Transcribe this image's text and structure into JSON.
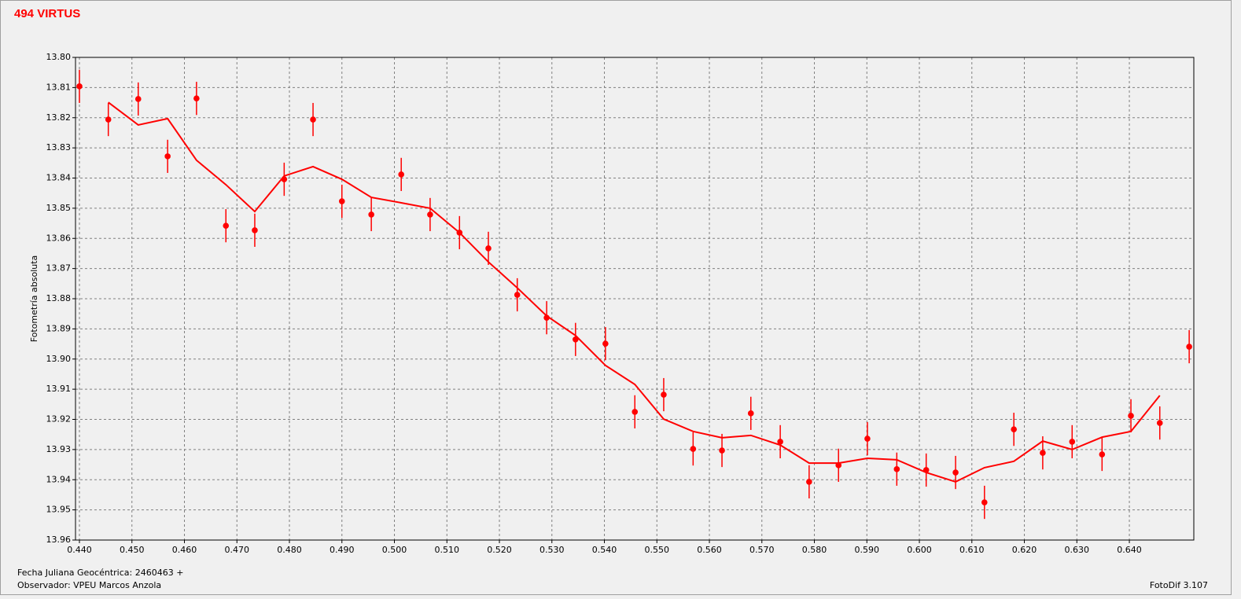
{
  "chart_data": {
    "type": "scatter",
    "title": "494 VIRTUS",
    "ylabel": "Fotometría absoluta",
    "xlabel": "Fecha Juliana Geocéntrica: 2460463 +",
    "observer": "Observador: VPEU Marcos Anzola",
    "software": "FotoDif 3.107",
    "xlim": [
      0.43925,
      0.65228
    ],
    "ylim": [
      13.8,
      13.96
    ],
    "y_inverted": true,
    "grid": true,
    "xticks": [
      {
        "value": 0.44,
        "label": "0.440"
      },
      {
        "value": 0.45,
        "label": "0.450"
      },
      {
        "value": 0.46,
        "label": "0.460"
      },
      {
        "value": 0.47,
        "label": "0.470"
      },
      {
        "value": 0.48,
        "label": "0.480"
      },
      {
        "value": 0.49,
        "label": "0.490"
      },
      {
        "value": 0.5,
        "label": "0.500"
      },
      {
        "value": 0.51,
        "label": "0.510"
      },
      {
        "value": 0.52,
        "label": "0.520"
      },
      {
        "value": 0.53,
        "label": "0.530"
      },
      {
        "value": 0.54,
        "label": "0.540"
      },
      {
        "value": 0.55,
        "label": "0.550"
      },
      {
        "value": 0.56,
        "label": "0.560"
      },
      {
        "value": 0.57,
        "label": "0.570"
      },
      {
        "value": 0.58,
        "label": "0.580"
      },
      {
        "value": 0.59,
        "label": "0.590"
      },
      {
        "value": 0.6,
        "label": "0.600"
      },
      {
        "value": 0.61,
        "label": "0.610"
      },
      {
        "value": 0.62,
        "label": "0.620"
      },
      {
        "value": 0.63,
        "label": "0.630"
      },
      {
        "value": 0.64,
        "label": "0.640"
      }
    ],
    "yticks": [
      {
        "value": 13.8,
        "label": "13.80"
      },
      13.81,
      13.82,
      13.83,
      13.84,
      13.85,
      13.86,
      13.87,
      13.88,
      13.89,
      {
        "value": 13.9,
        "label": "13.90"
      },
      13.91,
      13.92,
      13.93,
      13.94,
      13.95,
      13.96
    ],
    "series": [
      {
        "kind": "points",
        "color": "#ff0000",
        "x": [
          0.44,
          0.4455,
          0.4512,
          0.4568,
          0.4623,
          0.4679,
          0.4734,
          0.479,
          0.4845,
          0.49,
          0.4956,
          0.5013,
          0.5068,
          0.5124,
          0.5179,
          0.5234,
          0.529,
          0.5345,
          0.5402,
          0.5458,
          0.5513,
          0.5569,
          0.5624,
          0.5679,
          0.5735,
          0.579,
          0.5846,
          0.5901,
          0.5957,
          0.6013,
          0.6069,
          0.6124,
          0.618,
          0.6235,
          0.6291,
          0.6348,
          0.6403,
          0.6458,
          0.6514
        ],
        "values": [
          13.8096,
          13.8206,
          13.8138,
          13.8328,
          13.8136,
          13.8558,
          13.8573,
          13.8404,
          13.8206,
          13.8477,
          13.8521,
          13.8388,
          13.8521,
          13.8581,
          13.8633,
          13.8787,
          13.8863,
          13.8935,
          13.8949,
          13.9175,
          13.9118,
          13.9298,
          13.9303,
          13.918,
          13.9274,
          13.9407,
          13.9352,
          13.9264,
          13.9365,
          13.9368,
          13.9376,
          13.9475,
          13.9233,
          13.9311,
          13.9274,
          13.9316,
          13.9188,
          13.9212,
          13.8959
        ],
        "errors": [
          0.0055,
          0.0055,
          0.0055,
          0.0055,
          0.0055,
          0.0055,
          0.0055,
          0.0055,
          0.0055,
          0.0055,
          0.0055,
          0.0055,
          0.0055,
          0.0055,
          0.0055,
          0.0055,
          0.0055,
          0.0055,
          0.0055,
          0.0055,
          0.0055,
          0.0055,
          0.0055,
          0.0055,
          0.0055,
          0.0055,
          0.0055,
          0.0055,
          0.0055,
          0.0055,
          0.0055,
          0.0055,
          0.0055,
          0.0055,
          0.0055,
          0.0055,
          0.0055,
          0.0055,
          0.0055
        ]
      },
      {
        "kind": "line",
        "color": "#ff0000",
        "x": [
          0.4455,
          0.4512,
          0.4568,
          0.4623,
          0.4679,
          0.4734,
          0.479,
          0.4845,
          0.49,
          0.4956,
          0.5013,
          0.5068,
          0.5124,
          0.5179,
          0.5234,
          0.529,
          0.5345,
          0.5402,
          0.5458,
          0.5513,
          0.5569,
          0.5624,
          0.5679,
          0.5735,
          0.579,
          0.5846,
          0.5901,
          0.5957,
          0.6013,
          0.6069,
          0.6124,
          0.618,
          0.6235,
          0.6291,
          0.6348,
          0.6403,
          0.6458
        ],
        "values": [
          13.8149,
          13.8224,
          13.8203,
          13.8341,
          13.8422,
          13.8511,
          13.8393,
          13.8362,
          13.8404,
          13.8464,
          13.8482,
          13.85,
          13.8581,
          13.8678,
          13.8764,
          13.8857,
          13.8922,
          13.9021,
          13.9084,
          13.9199,
          13.924,
          13.9261,
          13.9253,
          13.9285,
          13.9345,
          13.9345,
          13.9329,
          13.9334,
          13.9376,
          13.9407,
          13.936,
          13.9339,
          13.9272,
          13.93,
          13.9259,
          13.924,
          13.9121
        ]
      }
    ]
  }
}
